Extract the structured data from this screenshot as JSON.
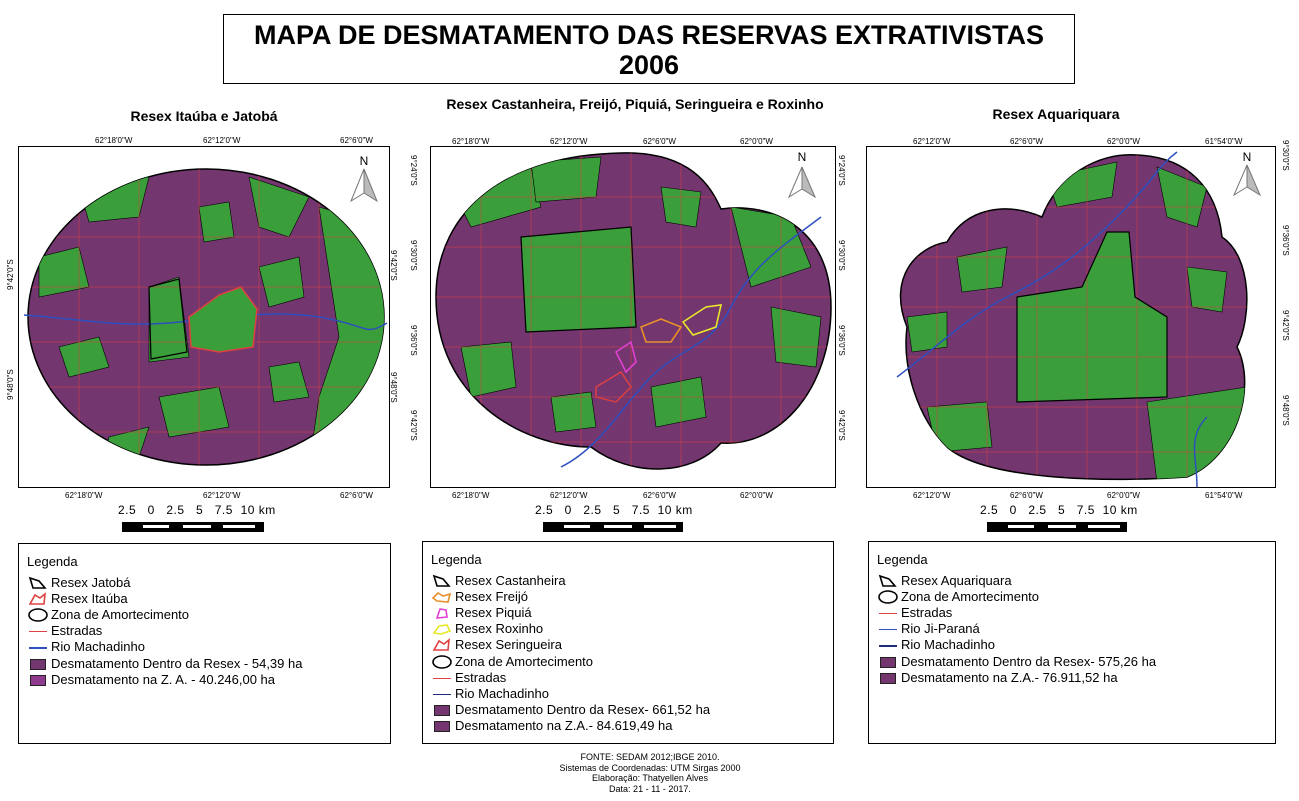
{
  "title": {
    "line1": "MAPA DE DESMATAMENTO DAS RESERVAS EXTRATIVISTAS",
    "line2": "2006"
  },
  "colors": {
    "forest": "#3a9e3a",
    "deforest": "#74366f",
    "deforest_alt": "#8e3a8e",
    "road": "#e04040",
    "river": "#2d4fbf"
  },
  "panels": [
    {
      "title": "Resex Itaúba e Jatobá",
      "top_ticks": [
        "62°18'0\"W",
        "62°12'0\"W",
        "62°6'0\"W"
      ],
      "bottom_ticks": [
        "62°18'0\"W",
        "62°12'0\"W",
        "62°6'0\"W"
      ],
      "left_ticks": [
        "9°42'0\"S",
        "9°48'0\"S"
      ],
      "right_ticks": [
        "9°42'0\"S",
        "9°48'0\"S"
      ],
      "north": "N",
      "scale": "2.5   0   2.5   5   7.5  10 km",
      "legend": {
        "title": "Legenda",
        "items": [
          {
            "label": "Resex Jatobá",
            "symbol": "outline-black"
          },
          {
            "label": "Resex Itaúba",
            "symbol": "outline-red"
          },
          {
            "label": "Zona de Amortecimento",
            "symbol": "outline-ellipse"
          },
          {
            "label": "Estradas",
            "symbol": "line-road"
          },
          {
            "label": "Rio Machadinho",
            "symbol": "line-river"
          },
          {
            "label": "Desmatamento Dentro da Resex - 54,39 ha",
            "symbol": "fill-deforest"
          },
          {
            "label": "Desmatamento na Z. A. - 40.246,00 ha",
            "symbol": "fill-deforest-alt"
          }
        ]
      }
    },
    {
      "title": "Resex Castanheira, Freijó, Piquiá, Seringueira e Roxinho",
      "top_ticks": [
        "62°18'0\"W",
        "62°12'0\"W",
        "62°6'0\"W",
        "62°0'0\"W"
      ],
      "bottom_ticks": [
        "62°18'0\"W",
        "62°12'0\"W",
        "62°6'0\"W",
        "62°0'0\"W"
      ],
      "left_ticks": [
        "9°24'0\"S",
        "9°30'0\"S",
        "9°36'0\"S",
        "9°42'0\"S"
      ],
      "right_ticks": [
        "9°24'0\"S",
        "9°30'0\"S",
        "9°36'0\"S",
        "9°42'0\"S"
      ],
      "north": "N",
      "scale": "2.5   0   2.5   5   7.5  10 km",
      "legend": {
        "title": "Legenda",
        "items": [
          {
            "label": "Resex Castanheira",
            "symbol": "outline-black"
          },
          {
            "label": "Resex Freijó",
            "symbol": "outline-orange"
          },
          {
            "label": "Resex Piquiá",
            "symbol": "outline-pink"
          },
          {
            "label": "Resex Roxinho",
            "symbol": "outline-yellow"
          },
          {
            "label": "Resex Seringueira",
            "symbol": "outline-red"
          },
          {
            "label": "Zona de Amortecimento",
            "symbol": "outline-ellipse"
          },
          {
            "label": "Estradas",
            "symbol": "line-road"
          },
          {
            "label": "Rio Machadinho",
            "symbol": "line-river-dark"
          },
          {
            "label": "Desmatamento Dentro da Resex- 661,52 ha",
            "symbol": "fill-deforest"
          },
          {
            "label": "Desmatamento na Z.A.- 84.619,49 ha",
            "symbol": "fill-deforest"
          }
        ]
      }
    },
    {
      "title": "Resex Aquariquara",
      "top_ticks": [
        "62°12'0\"W",
        "62°6'0\"W",
        "62°0'0\"W",
        "61°54'0\"W"
      ],
      "bottom_ticks": [
        "62°12'0\"W",
        "62°6'0\"W",
        "62°0'0\"W",
        "61°54'0\"W"
      ],
      "left_ticks": [],
      "right_ticks": [
        "9°30'0\"S",
        "9°36'0\"S",
        "9°42'0\"S",
        "9°48'0\"S"
      ],
      "north": "N",
      "scale": "2.5   0   2.5   5   7.5  10 km",
      "legend": {
        "title": "Legenda",
        "items": [
          {
            "label": "Resex Aquariquara",
            "symbol": "outline-black"
          },
          {
            "label": "Zona de Amortecimento",
            "symbol": "outline-ellipse"
          },
          {
            "label": "Estradas",
            "symbol": "line-road"
          },
          {
            "label": "Rio Ji-Paraná",
            "symbol": "line-river"
          },
          {
            "label": "Rio Machadinho",
            "symbol": "line-river-dark"
          },
          {
            "label": "Desmatamento Dentro da Resex- 575,26 ha",
            "symbol": "fill-deforest"
          },
          {
            "label": "Desmatamento na Z.A.- 76.911,52 ha",
            "symbol": "fill-deforest"
          }
        ]
      }
    }
  ],
  "footer": [
    "FONTE:  SEDAM 2012;IBGE 2010.",
    "Sistemas de Coordenadas: UTM Sirgas 2000",
    "Elaboração: Thatyellen Alves",
    "Data: 21 - 11 - 2017."
  ]
}
